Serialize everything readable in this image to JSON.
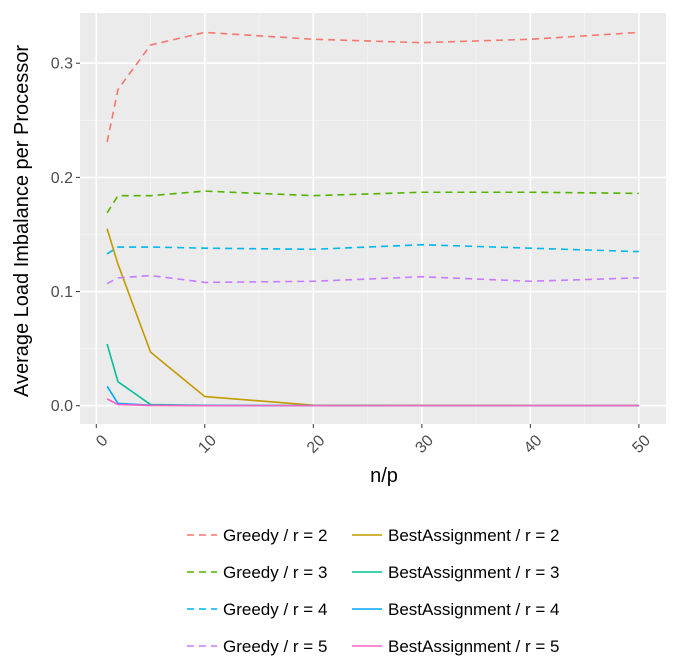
{
  "chart_data": {
    "type": "line",
    "title": "",
    "xlabel": "n/p",
    "ylabel": "Average Load Imbalance per Processor",
    "xlim": [
      -1.5,
      52.5
    ],
    "ylim": [
      -0.016,
      0.344
    ],
    "xticks": [
      0,
      10,
      20,
      30,
      40,
      50
    ],
    "xtick_labels": [
      "0",
      "10",
      "20",
      "30",
      "40",
      "50"
    ],
    "yticks": [
      0.0,
      0.1,
      0.2,
      0.3
    ],
    "ytick_labels": [
      "0.0",
      "0.1",
      "0.2",
      "0.3"
    ],
    "grid": true,
    "legend_position": "bottom",
    "series": [
      {
        "name": "Greedy / r = 2",
        "color": "#F8766D",
        "dash": "dashed",
        "x": [
          1,
          2,
          5,
          10,
          20,
          30,
          40,
          50
        ],
        "y": [
          0.231,
          0.277,
          0.316,
          0.327,
          0.321,
          0.318,
          0.321,
          0.327
        ]
      },
      {
        "name": "BestAssignment / r = 2",
        "color": "#C49A00",
        "dash": "solid",
        "x": [
          1,
          2,
          5,
          10,
          20,
          30,
          40,
          50
        ],
        "y": [
          0.155,
          0.124,
          0.047,
          0.008,
          0.0005,
          0.0003,
          0.0002,
          0.0002
        ]
      },
      {
        "name": "Greedy / r = 3",
        "color": "#53B400",
        "dash": "dashed",
        "x": [
          1,
          2,
          5,
          10,
          20,
          30,
          40,
          50
        ],
        "y": [
          0.169,
          0.184,
          0.184,
          0.188,
          0.184,
          0.187,
          0.187,
          0.186
        ]
      },
      {
        "name": "BestAssignment / r = 3",
        "color": "#00C094",
        "dash": "solid",
        "x": [
          1,
          2,
          5,
          10,
          20,
          30,
          40,
          50
        ],
        "y": [
          0.054,
          0.021,
          0.001,
          0.0004,
          0.0002,
          0.0001,
          0.0001,
          0.0001
        ]
      },
      {
        "name": "Greedy / r = 4",
        "color": "#00B6EB",
        "dash": "dashed",
        "x": [
          1,
          2,
          5,
          10,
          20,
          30,
          40,
          50
        ],
        "y": [
          0.133,
          0.139,
          0.139,
          0.138,
          0.137,
          0.141,
          0.138,
          0.135
        ]
      },
      {
        "name": "BestAssignment / r = 4",
        "color": "#06A4FF",
        "dash": "solid",
        "x": [
          1,
          2,
          5,
          10,
          20,
          30,
          40,
          50
        ],
        "y": [
          0.017,
          0.002,
          0.0005,
          0.0002,
          0.0001,
          0.0001,
          0.0001,
          0.0001
        ]
      },
      {
        "name": "Greedy / r = 5",
        "color": "#C77CFF",
        "dash": "dashed",
        "x": [
          1,
          2,
          5,
          10,
          20,
          30,
          40,
          50
        ],
        "y": [
          0.107,
          0.112,
          0.114,
          0.108,
          0.109,
          0.113,
          0.109,
          0.112
        ]
      },
      {
        "name": "BestAssignment / r = 5",
        "color": "#FF61C3",
        "dash": "solid",
        "x": [
          1,
          2,
          5,
          10,
          20,
          30,
          40,
          50
        ],
        "y": [
          0.006,
          0.001,
          0.0003,
          0.0001,
          0.0001,
          0.0001,
          0.0001,
          0.0001
        ]
      }
    ]
  }
}
